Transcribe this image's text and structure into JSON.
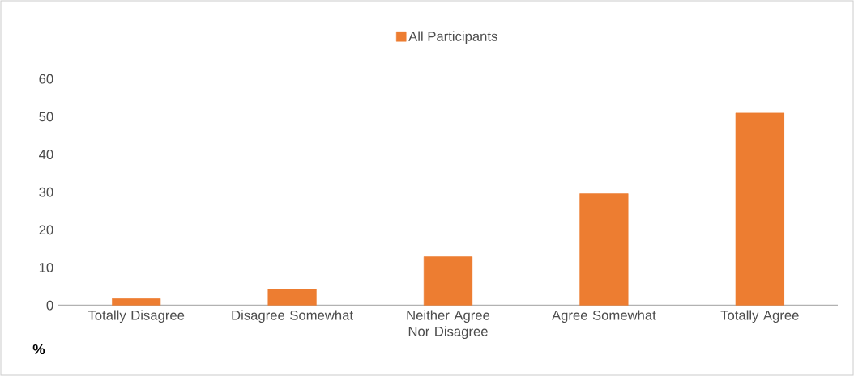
{
  "chart_data": {
    "type": "bar",
    "ylabel": "%",
    "categories": [
      "Totally Disagree",
      "Disagree Somewhat",
      "Neither Agree Nor Disagree",
      "Agree Somewhat",
      "Totally Agree"
    ],
    "series": [
      {
        "name": "All Participants",
        "color": "#ed7d31",
        "values": [
          1.8,
          4.2,
          12.9,
          29.6,
          51.0
        ]
      }
    ],
    "ylim": [
      0,
      60
    ],
    "yticks": [
      0,
      10,
      20,
      30,
      40,
      50,
      60
    ],
    "legend": "top"
  }
}
